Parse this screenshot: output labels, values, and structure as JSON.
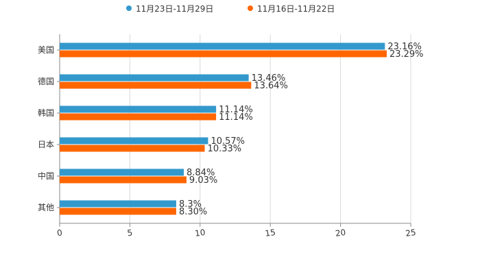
{
  "chart_data": {
    "type": "bar",
    "orientation": "horizontal",
    "categories": [
      "美国",
      "德国",
      "韩国",
      "日本",
      "中国",
      "其他"
    ],
    "series": [
      {
        "name": "11月23日-11月29日",
        "color": "#3399cc",
        "values": [
          23.16,
          13.46,
          11.14,
          10.57,
          8.84,
          8.3
        ],
        "labels": [
          "23.16%",
          "13.46%",
          "11.14%",
          "10.57%",
          "8.84%",
          "8.3%"
        ]
      },
      {
        "name": "11月16日-11月22日",
        "color": "#ff6600",
        "values": [
          23.29,
          13.64,
          11.14,
          10.33,
          9.03,
          8.3
        ],
        "labels": [
          "23.29%",
          "13.64%",
          "11.14%",
          "10.33%",
          "9.03%",
          "8.30%"
        ]
      }
    ],
    "xlim": [
      0,
      25
    ],
    "xticks": [
      0,
      5,
      10,
      15,
      20,
      25
    ],
    "xtick_labels": [
      "0",
      "5",
      "10",
      "15",
      "20",
      "25"
    ],
    "grid": true,
    "legend_position": "top-center",
    "title": "",
    "xlabel": "",
    "ylabel": ""
  }
}
